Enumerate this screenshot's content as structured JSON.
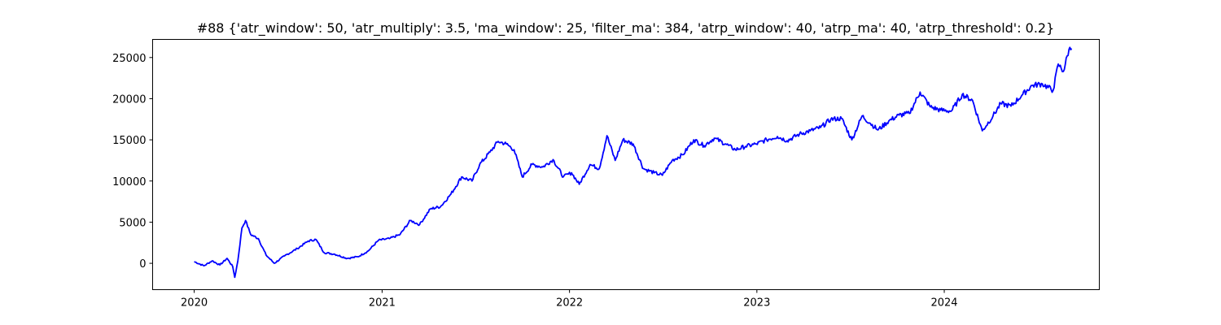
{
  "chart_data": {
    "type": "line",
    "title": "#88 {'atr_window': 50, 'atr_multiply': 3.5, 'ma_window': 25, 'filter_ma': 384, 'atrp_window': 40, 'atrp_ma': 40, 'atrp_threshold': 0.2}",
    "xlabel": "",
    "ylabel": "",
    "x_ticks": [
      "2020",
      "2021",
      "2022",
      "2023",
      "2024"
    ],
    "y_ticks": [
      0,
      5000,
      10000,
      15000,
      20000,
      25000
    ],
    "xlim": [
      "2019-10-12",
      "2024-10-29"
    ],
    "ylim": [
      -3200,
      27200
    ],
    "grid": false,
    "series": [
      {
        "color": "#0000ff",
        "x": [
          "2020-01-01",
          "2020-01-20",
          "2020-02-05",
          "2020-02-20",
          "2020-03-05",
          "2020-03-16",
          "2020-03-20",
          "2020-03-26",
          "2020-04-03",
          "2020-04-10",
          "2020-04-20",
          "2020-05-05",
          "2020-05-20",
          "2020-06-05",
          "2020-06-25",
          "2020-07-20",
          "2020-08-10",
          "2020-08-25",
          "2020-09-10",
          "2020-10-01",
          "2020-10-25",
          "2020-11-15",
          "2020-12-05",
          "2020-12-25",
          "2021-01-15",
          "2021-02-05",
          "2021-02-25",
          "2021-03-15",
          "2021-04-05",
          "2021-04-25",
          "2021-05-15",
          "2021-06-05",
          "2021-06-25",
          "2021-07-10",
          "2021-07-30",
          "2021-08-15",
          "2021-08-31",
          "2021-09-15",
          "2021-10-01",
          "2021-10-20",
          "2021-11-10",
          "2021-11-30",
          "2021-12-20",
          "2022-01-05",
          "2022-01-20",
          "2022-02-10",
          "2022-02-28",
          "2022-03-15",
          "2022-03-31",
          "2022-04-15",
          "2022-05-05",
          "2022-05-25",
          "2022-06-15",
          "2022-07-01",
          "2022-07-20",
          "2022-08-10",
          "2022-08-31",
          "2022-09-20",
          "2022-10-10",
          "2022-11-01",
          "2022-11-20",
          "2022-12-10",
          "2022-12-31",
          "2023-01-20",
          "2023-02-10",
          "2023-03-01",
          "2023-03-25",
          "2023-04-15",
          "2023-05-05",
          "2023-05-25",
          "2023-06-15",
          "2023-07-05",
          "2023-07-25",
          "2023-08-10",
          "2023-08-25",
          "2023-09-15",
          "2023-10-05",
          "2023-10-25",
          "2023-11-15",
          "2023-12-05",
          "2023-12-25",
          "2024-01-15",
          "2024-02-05",
          "2024-02-25",
          "2024-03-15",
          "2024-04-05",
          "2024-04-20",
          "2024-05-10",
          "2024-05-31",
          "2024-06-20",
          "2024-07-10",
          "2024-07-31",
          "2024-08-10",
          "2024-08-20",
          "2024-08-31",
          "2024-09-05"
        ],
        "y": [
          200,
          -300,
          300,
          -200,
          600,
          -400,
          -1700,
          300,
          4300,
          5200,
          3500,
          3000,
          1000,
          0,
          900,
          1800,
          2700,
          2900,
          1300,
          1100,
          600,
          800,
          1500,
          2800,
          3000,
          3500,
          5200,
          4700,
          6600,
          6900,
          8400,
          10500,
          10000,
          12000,
          13500,
          14800,
          14500,
          13800,
          10500,
          12000,
          11700,
          12600,
          10500,
          11000,
          9600,
          12000,
          11500,
          15500,
          12500,
          15000,
          14500,
          11500,
          11000,
          10700,
          12500,
          13200,
          15000,
          14300,
          15200,
          14500,
          13800,
          14200,
          14500,
          15000,
          15400,
          14900,
          15700,
          16100,
          16500,
          17500,
          17600,
          15000,
          17900,
          17000,
          16200,
          17300,
          18000,
          18200,
          20800,
          19000,
          18600,
          18500,
          20500,
          19800,
          16100,
          17900,
          19400,
          19100,
          20400,
          21600,
          21800,
          21000,
          24200,
          23300,
          26000,
          26100
        ]
      }
    ]
  }
}
